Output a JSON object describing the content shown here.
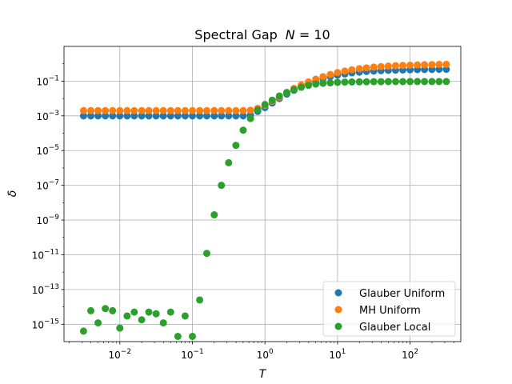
{
  "chart_data": {
    "type": "scatter",
    "title_main": "Spectral Gap",
    "title_n_symbol": "N",
    "title_n_rest": " =  10",
    "xlabel": "T",
    "ylabel": "δ",
    "xscale": "log",
    "yscale": "log",
    "xlim": [
      0.0017,
      500
    ],
    "ylim": [
      1e-16,
      10
    ],
    "grid": true,
    "legend_position": "lower right",
    "x_ticks": [
      {
        "value": 0.01,
        "base": "10",
        "exp": "−2"
      },
      {
        "value": 0.1,
        "base": "10",
        "exp": "−1"
      },
      {
        "value": 1,
        "base": "10",
        "exp": "0"
      },
      {
        "value": 10,
        "base": "10",
        "exp": "1"
      },
      {
        "value": 100,
        "base": "10",
        "exp": "2"
      }
    ],
    "y_ticks": [
      {
        "value": 1e-15,
        "base": "10",
        "exp": "−15"
      },
      {
        "value": 1e-13,
        "base": "10",
        "exp": "−13"
      },
      {
        "value": 1e-11,
        "base": "10",
        "exp": "−11"
      },
      {
        "value": 1e-09,
        "base": "10",
        "exp": "−9"
      },
      {
        "value": 1e-07,
        "base": "10",
        "exp": "−7"
      },
      {
        "value": 1e-05,
        "base": "10",
        "exp": "−5"
      },
      {
        "value": 0.001,
        "base": "10",
        "exp": "−3"
      },
      {
        "value": 0.1,
        "base": "10",
        "exp": "−1"
      }
    ],
    "x": [
      0.00316,
      0.00398,
      0.00501,
      0.00631,
      0.00794,
      0.01,
      0.0126,
      0.0158,
      0.02,
      0.0251,
      0.0316,
      0.0398,
      0.0501,
      0.0631,
      0.0794,
      0.1,
      0.126,
      0.158,
      0.2,
      0.251,
      0.316,
      0.398,
      0.501,
      0.631,
      0.794,
      1.0,
      1.26,
      1.58,
      2.0,
      2.51,
      3.16,
      3.98,
      5.01,
      6.31,
      7.94,
      10.0,
      12.6,
      15.8,
      20.0,
      25.1,
      31.6,
      39.8,
      50.1,
      63.1,
      79.4,
      100,
      126,
      158,
      200,
      251,
      316
    ],
    "series": [
      {
        "name": "Glauber Uniform",
        "color": "#1f77b4",
        "values": [
          0.001,
          0.001,
          0.001,
          0.001,
          0.001,
          0.001,
          0.001,
          0.001,
          0.001,
          0.001,
          0.001,
          0.001,
          0.001,
          0.001,
          0.001,
          0.001,
          0.001,
          0.001,
          0.001,
          0.001,
          0.001,
          0.001,
          0.001,
          0.0011,
          0.0018,
          0.003,
          0.0055,
          0.01,
          0.018,
          0.03,
          0.045,
          0.07,
          0.1,
          0.14,
          0.18,
          0.22,
          0.26,
          0.3,
          0.33,
          0.36,
          0.38,
          0.4,
          0.42,
          0.43,
          0.44,
          0.45,
          0.46,
          0.47,
          0.47,
          0.48,
          0.48
        ]
      },
      {
        "name": "MH Uniform",
        "color": "#ff7f0e",
        "values": [
          0.002,
          0.002,
          0.002,
          0.002,
          0.002,
          0.002,
          0.002,
          0.002,
          0.002,
          0.002,
          0.002,
          0.002,
          0.002,
          0.002,
          0.002,
          0.002,
          0.002,
          0.002,
          0.002,
          0.002,
          0.002,
          0.002,
          0.002,
          0.0021,
          0.0027,
          0.004,
          0.007,
          0.012,
          0.022,
          0.038,
          0.06,
          0.09,
          0.13,
          0.18,
          0.24,
          0.31,
          0.38,
          0.45,
          0.52,
          0.58,
          0.64,
          0.69,
          0.73,
          0.77,
          0.8,
          0.83,
          0.86,
          0.88,
          0.9,
          0.92,
          0.93
        ]
      },
      {
        "name": "Glauber Local",
        "color": "#2ca02c",
        "values": [
          4e-16,
          6e-15,
          1.2e-15,
          8e-15,
          6e-15,
          6e-16,
          3e-15,
          5e-15,
          1.8e-15,
          5e-15,
          4e-15,
          1.2e-15,
          5e-15,
          2e-16,
          3e-15,
          2e-16,
          2.5e-14,
          1.2e-11,
          2e-09,
          1e-07,
          2e-06,
          2e-05,
          0.00015,
          0.0007,
          0.0022,
          0.0045,
          0.008,
          0.014,
          0.022,
          0.032,
          0.045,
          0.057,
          0.068,
          0.075,
          0.08,
          0.085,
          0.088,
          0.09,
          0.091,
          0.092,
          0.093,
          0.093,
          0.094,
          0.094,
          0.094,
          0.095,
          0.095,
          0.095,
          0.095,
          0.095,
          0.095
        ]
      }
    ]
  }
}
